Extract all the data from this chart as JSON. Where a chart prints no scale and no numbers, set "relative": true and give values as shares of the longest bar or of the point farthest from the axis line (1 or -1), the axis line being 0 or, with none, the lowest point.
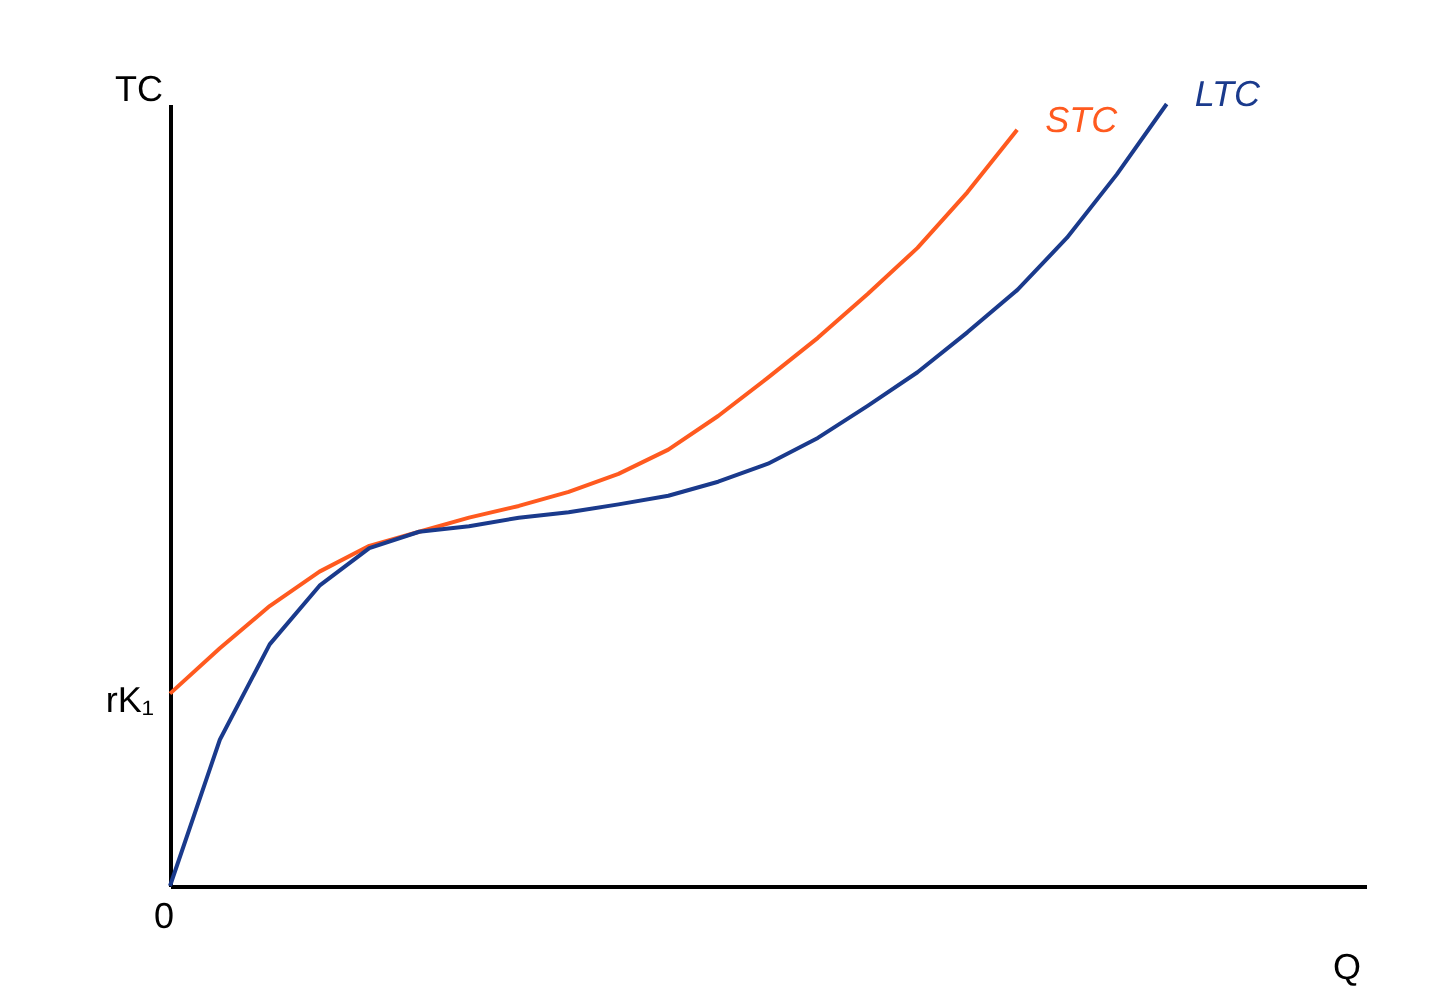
{
  "chart_data": {
    "type": "line",
    "relative": true,
    "xlabel": "Q",
    "ylabel": "TC",
    "grid": false,
    "categories": [
      null,
      null,
      null,
      null,
      null,
      null,
      null,
      null,
      null,
      null,
      null,
      null,
      null,
      null,
      null,
      null,
      null,
      null,
      null,
      null,
      null,
      null,
      null,
      null,
      null
    ],
    "series": [
      {
        "name": "STC",
        "color": "#ff5a1f",
        "values": [
          0.246,
          0.304,
          0.358,
          0.402,
          0.435,
          0.453,
          0.471,
          0.486,
          0.504,
          0.527,
          0.558,
          0.601,
          0.65,
          0.701,
          0.757,
          0.816,
          0.887,
          0.967,
          null,
          null,
          null,
          null,
          null,
          null,
          null
        ]
      },
      {
        "name": "LTC",
        "color": "#1a3a8c",
        "values": [
          0,
          0.187,
          0.309,
          0.384,
          0.432,
          0.453,
          0.46,
          0.471,
          0.478,
          0.488,
          0.499,
          0.517,
          0.54,
          0.573,
          0.614,
          0.657,
          0.708,
          0.762,
          0.829,
          0.91,
          1,
          null,
          null,
          null,
          null
        ]
      }
    ],
    "annotations": [
      "rK₁",
      "0"
    ]
  }
}
